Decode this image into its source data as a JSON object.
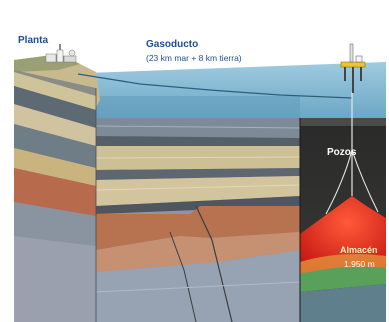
{
  "labels": {
    "planta": "Planta",
    "gasoducto_title": "Gasoducto",
    "gasoducto_detail": "(23 km mar + 8 km tierra)",
    "pozos": "Pozos",
    "almacen_title": "Almacén",
    "almacen_depth": "1.950 m"
  },
  "icons": {
    "plant": "processing-plant-icon",
    "platform": "offshore-platform-icon"
  },
  "colors": {
    "sea": "#7fb3cf",
    "reservoir_gas": "#e8261e",
    "water_layer": "#59a05a",
    "label_text": "#1d4f8f"
  }
}
